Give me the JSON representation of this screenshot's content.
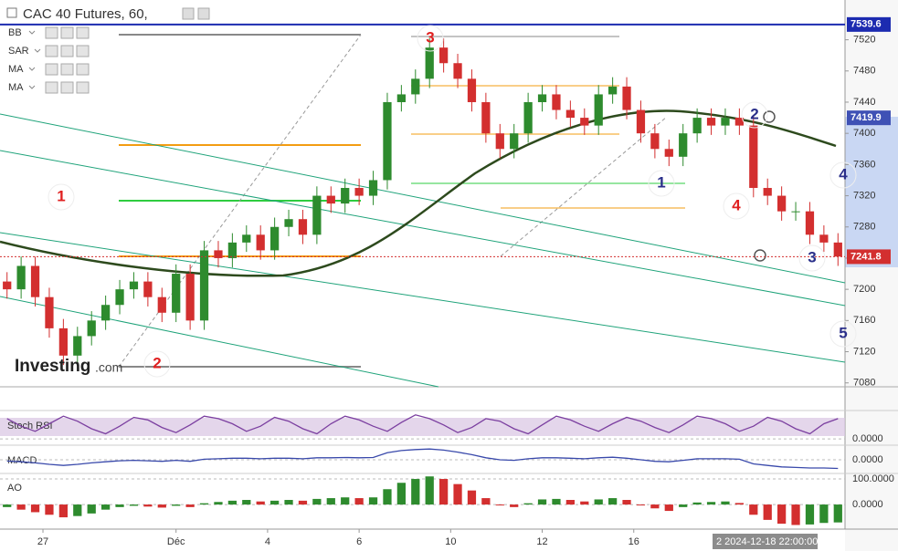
{
  "chart_data": {
    "type": "candlestick",
    "title": "CAC 40 Futures, 60,",
    "legend": [
      "BB",
      "SAR",
      "MA",
      "MA"
    ],
    "up_color": "#2e8b2e",
    "down_color": "#d32f2f",
    "opens": [
      7210,
      7200,
      7230,
      7190,
      7150,
      7115,
      7140,
      7160,
      7180,
      7200,
      7210,
      7190,
      7170,
      7220,
      7160,
      7250,
      7240,
      7260,
      7270,
      7250,
      7280,
      7290,
      7270,
      7320,
      7310,
      7330,
      7320,
      7340,
      7440,
      7450,
      7470,
      7510,
      7490,
      7470,
      7440,
      7400,
      7380,
      7400,
      7440,
      7450,
      7430,
      7420,
      7410,
      7450,
      7460,
      7430,
      7400,
      7380,
      7370,
      7400,
      7420,
      7410,
      7420,
      7410,
      7330,
      7320,
      7300,
      7300,
      7270,
      7260
    ],
    "highs": [
      7222,
      7242,
      7242,
      7202,
      7162,
      7152,
      7172,
      7192,
      7212,
      7222,
      7222,
      7202,
      7232,
      7232,
      7262,
      7262,
      7272,
      7282,
      7282,
      7292,
      7302,
      7302,
      7332,
      7332,
      7342,
      7342,
      7352,
      7452,
      7462,
      7482,
      7522,
      7522,
      7502,
      7482,
      7452,
      7412,
      7412,
      7452,
      7462,
      7462,
      7442,
      7432,
      7462,
      7472,
      7472,
      7442,
      7412,
      7392,
      7412,
      7432,
      7432,
      7432,
      7432,
      7422,
      7342,
      7332,
      7312,
      7312,
      7282,
      7272
    ],
    "lows": [
      7188,
      7188,
      7178,
      7138,
      7103,
      7103,
      7128,
      7148,
      7168,
      7188,
      7178,
      7158,
      7158,
      7148,
      7148,
      7228,
      7228,
      7248,
      7238,
      7238,
      7268,
      7258,
      7258,
      7298,
      7298,
      7308,
      7308,
      7328,
      7428,
      7438,
      7458,
      7478,
      7458,
      7428,
      7388,
      7368,
      7368,
      7388,
      7428,
      7418,
      7408,
      7398,
      7398,
      7438,
      7418,
      7388,
      7368,
      7358,
      7358,
      7388,
      7398,
      7398,
      7398,
      7318,
      7308,
      7288,
      7288,
      7258,
      7248,
      7230
    ],
    "closes": [
      7200,
      7230,
      7190,
      7150,
      7115,
      7140,
      7160,
      7180,
      7200,
      7210,
      7190,
      7170,
      7220,
      7160,
      7250,
      7240,
      7260,
      7270,
      7250,
      7280,
      7290,
      7270,
      7320,
      7310,
      7330,
      7320,
      7340,
      7440,
      7450,
      7470,
      7510,
      7490,
      7470,
      7440,
      7400,
      7380,
      7400,
      7440,
      7450,
      7430,
      7420,
      7410,
      7450,
      7460,
      7430,
      7400,
      7380,
      7370,
      7400,
      7420,
      7410,
      7420,
      7410,
      7330,
      7320,
      7300,
      7300,
      7270,
      7260,
      7242
    ],
    "xlim": [
      -0.5,
      59.5
    ],
    "xticks": [
      {
        "value": 2.55,
        "label": "27"
      },
      {
        "value": 12,
        "label": "Déc"
      },
      {
        "value": 18.5,
        "label": "4"
      },
      {
        "value": 25,
        "label": "6"
      },
      {
        "value": 31.5,
        "label": "10"
      },
      {
        "value": 38,
        "label": "12"
      },
      {
        "value": 44.5,
        "label": "16"
      }
    ],
    "ylim": [
      7075,
      7571
    ],
    "yticks": [
      7080,
      7120,
      7160,
      7200,
      7240,
      7280,
      7320,
      7360,
      7400,
      7440,
      7480,
      7520
    ],
    "price_lines": [
      {
        "value": 7539.6,
        "color": "#1c2bb0",
        "line": "solid"
      },
      {
        "value": 7419.9,
        "color": "#3f51b5",
        "line": "none"
      },
      {
        "value": 7241.8,
        "color": "#d32f2f",
        "line": "dotted"
      }
    ],
    "crosshair_label": "2 2024-12-18 22:00:00",
    "annotations": [
      {
        "text": "1",
        "color": "#e02020"
      },
      {
        "text": "2",
        "color": "#e02020"
      },
      {
        "text": "3",
        "color": "#e02020"
      },
      {
        "text": "4",
        "color": "#e02020"
      },
      {
        "text": "1",
        "color": "#2a2f8a"
      },
      {
        "text": "2",
        "color": "#2a2f8a"
      },
      {
        "text": "3",
        "color": "#2a2f8a"
      },
      {
        "text": "4",
        "color": "#2a2f8a"
      },
      {
        "text": "5",
        "color": "#2a2f8a"
      }
    ],
    "watermark": [
      "Investing",
      ".com"
    ],
    "indicators": [
      {
        "name": "Stoch RSI",
        "style": "line",
        "color": "#7b3fa0",
        "ylim": [
          -25,
          105
        ],
        "ticks": [
          {
            "value": 0,
            "label": "0.0000"
          }
        ],
        "values": [
          80,
          50,
          30,
          60,
          90,
          70,
          40,
          20,
          50,
          85,
          75,
          45,
          25,
          55,
          90,
          80,
          60,
          30,
          50,
          85,
          70,
          40,
          20,
          60,
          90,
          75,
          50,
          30,
          65,
          95,
          80,
          55,
          25,
          45,
          80,
          70,
          40,
          20,
          55,
          90,
          75,
          50,
          30,
          60,
          85,
          70,
          45,
          25,
          55,
          90,
          80,
          60,
          30,
          50,
          85,
          70,
          40,
          20,
          60,
          80
        ]
      },
      {
        "name": "MACD",
        "style": "line",
        "color": "#3949ab",
        "ylim": [
          -50,
          50
        ],
        "ticks": [
          {
            "value": 0,
            "label": "0.0000"
          }
        ],
        "values": [
          -5,
          -8,
          -12,
          -18,
          -22,
          -18,
          -12,
          -8,
          -4,
          -2,
          -4,
          -6,
          -2,
          -6,
          2,
          4,
          6,
          6,
          4,
          6,
          6,
          4,
          8,
          8,
          9,
          8,
          9,
          28,
          36,
          40,
          42,
          38,
          30,
          20,
          8,
          0,
          -2,
          4,
          8,
          8,
          6,
          4,
          8,
          10,
          6,
          0,
          -6,
          -8,
          -2,
          4,
          4,
          4,
          2,
          -16,
          -22,
          -28,
          -30,
          -32,
          -32,
          -34
        ]
      },
      {
        "name": "AO",
        "style": "histogram",
        "color": "#2e8b2e",
        "ylim": [
          -89,
          118
        ],
        "ticks": [
          {
            "value": 100,
            "label": "100.0000"
          },
          {
            "value": 0,
            "label": "0.0000"
          }
        ],
        "values": [
          -10,
          -20,
          -30,
          -40,
          -50,
          -45,
          -35,
          -20,
          -10,
          -5,
          -8,
          -12,
          -5,
          -10,
          5,
          10,
          15,
          18,
          12,
          15,
          18,
          15,
          22,
          25,
          28,
          25,
          28,
          60,
          85,
          100,
          110,
          100,
          80,
          55,
          25,
          0,
          -10,
          5,
          20,
          22,
          18,
          12,
          20,
          25,
          18,
          0,
          -15,
          -25,
          -10,
          8,
          10,
          12,
          6,
          -40,
          -60,
          -75,
          -80,
          -78,
          -72,
          -70
        ]
      }
    ]
  }
}
